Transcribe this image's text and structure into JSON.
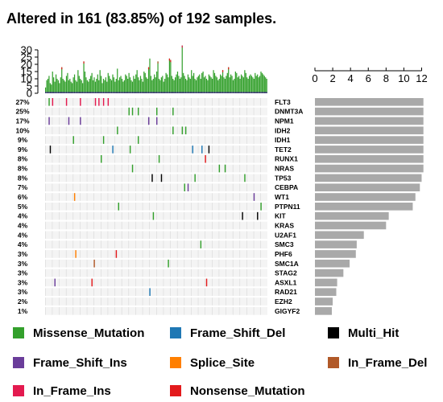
{
  "title": "Altered in 161 (83.85%) of 192 samples.",
  "colors": {
    "Missense_Mutation": "#33a02c",
    "Frame_Shift_Del": "#1f78b4",
    "Multi_Hit": "#000000",
    "Frame_Shift_Ins": "#6a3d9a",
    "Splice_Site": "#ff7f00",
    "In_Frame_Del": "#b15928",
    "In_Frame_Ins": "#e31a4f",
    "Nonsense_Mutation": "#e31a1c",
    "gene_bar": "#a9a9a9",
    "empty_cell": "#f0f0f0"
  },
  "legend": [
    {
      "label": "Missense_Mutation",
      "color": "#33a02c"
    },
    {
      "label": "Frame_Shift_Del",
      "color": "#1f78b4"
    },
    {
      "label": "Multi_Hit",
      "color": "#000000"
    },
    {
      "label": "Frame_Shift_Ins",
      "color": "#6a3d9a"
    },
    {
      "label": "Splice_Site",
      "color": "#ff7f00"
    },
    {
      "label": "In_Frame_Del",
      "color": "#b15928"
    },
    {
      "label": "In_Frame_Ins",
      "color": "#e31a4f"
    },
    {
      "label": "Nonsense_Mutation",
      "color": "#e31a1c"
    }
  ],
  "chart_data": {
    "type": "oncoplot",
    "title": "Altered in 161 (83.85%) of 192 samples.",
    "samples_total": 192,
    "samples_altered": 161,
    "tmb_axis": {
      "ticks": [
        0,
        5,
        10,
        15,
        20,
        25,
        30
      ],
      "ylim": [
        0,
        35
      ]
    },
    "gene_axis": {
      "ticks": [
        0,
        2,
        4,
        6,
        8,
        10,
        12
      ],
      "xlim": [
        0,
        12.5
      ]
    },
    "genes": [
      {
        "name": "FLT3",
        "pct": "27%",
        "count": 12.2
      },
      {
        "name": "DNMT3A",
        "pct": "25%",
        "count": 12.2
      },
      {
        "name": "NPM1",
        "pct": "17%",
        "count": 12.2
      },
      {
        "name": "IDH2",
        "pct": "10%",
        "count": 12.2
      },
      {
        "name": "IDH1",
        "pct": "9%",
        "count": 12.2
      },
      {
        "name": "TET2",
        "pct": "9%",
        "count": 12.2
      },
      {
        "name": "RUNX1",
        "pct": "8%",
        "count": 12.2
      },
      {
        "name": "NRAS",
        "pct": "8%",
        "count": 12.2
      },
      {
        "name": "TP53",
        "pct": "8%",
        "count": 12.0
      },
      {
        "name": "CEBPA",
        "pct": "7%",
        "count": 11.8
      },
      {
        "name": "WT1",
        "pct": "6%",
        "count": 11.3
      },
      {
        "name": "PTPN11",
        "pct": "5%",
        "count": 11.0
      },
      {
        "name": "KIT",
        "pct": "4%",
        "count": 8.3
      },
      {
        "name": "KRAS",
        "pct": "4%",
        "count": 8.0
      },
      {
        "name": "U2AF1",
        "pct": "4%",
        "count": 5.5
      },
      {
        "name": "SMC3",
        "pct": "4%",
        "count": 4.7
      },
      {
        "name": "PHF6",
        "pct": "3%",
        "count": 4.6
      },
      {
        "name": "SMC1A",
        "pct": "3%",
        "count": 3.9
      },
      {
        "name": "STAG2",
        "pct": "3%",
        "count": 3.2
      },
      {
        "name": "ASXL1",
        "pct": "3%",
        "count": 2.5
      },
      {
        "name": "RAD21",
        "pct": "3%",
        "count": 2.4
      },
      {
        "name": "EZH2",
        "pct": "2%",
        "count": 2.0
      },
      {
        "name": "GIGYF2",
        "pct": "1%",
        "count": 1.9
      }
    ],
    "tmb_values": [
      4,
      9,
      10,
      12,
      7,
      6,
      15,
      11,
      8,
      13,
      10,
      9,
      7,
      11,
      18,
      10,
      9,
      8,
      12,
      14,
      9,
      10,
      8,
      7,
      11,
      13,
      9,
      8,
      16,
      12,
      10,
      9,
      7,
      22,
      15,
      11,
      9,
      8,
      10,
      12,
      14,
      9,
      11,
      8,
      10,
      13,
      9,
      16,
      12,
      7,
      10,
      9,
      11,
      8,
      14,
      12,
      10,
      9,
      13,
      11,
      8,
      10,
      17,
      9,
      11,
      12,
      10,
      8,
      9,
      13,
      12,
      10,
      14,
      11,
      9,
      8,
      12,
      10,
      13,
      16,
      11,
      9,
      12,
      10,
      8,
      15,
      14,
      11,
      10,
      18,
      24,
      12,
      9,
      10,
      13,
      11,
      15,
      22,
      10,
      9,
      11,
      12,
      8,
      10,
      14,
      13,
      11,
      24,
      23,
      12,
      10,
      9,
      11,
      13,
      15,
      12,
      10,
      11,
      33,
      14,
      12,
      10,
      9,
      13,
      11,
      10,
      16,
      12,
      14,
      10,
      9,
      11,
      12,
      13,
      10,
      14,
      15,
      11,
      12,
      10,
      9,
      13,
      12,
      11,
      10,
      16,
      14,
      12,
      11,
      9,
      10,
      13,
      12,
      16,
      11,
      10,
      12,
      14,
      18,
      11,
      13,
      12,
      9,
      10,
      15,
      14,
      11,
      12,
      10,
      13,
      12,
      11,
      16,
      14,
      11,
      10,
      12,
      13,
      12,
      11,
      10,
      14,
      12,
      13,
      11,
      12,
      15,
      14,
      13,
      12,
      11,
      10
    ],
    "tmb_highlights": [
      {
        "index": 14,
        "color": "#e31a1c"
      },
      {
        "index": 33,
        "color": "#e31a1c"
      },
      {
        "index": 89,
        "color": "#e31a1c"
      },
      {
        "index": 97,
        "color": "#b15928"
      },
      {
        "index": 107,
        "color": "#e31a1c"
      },
      {
        "index": 108,
        "color": "#e31a1c"
      },
      {
        "index": 118,
        "color": "#e31a4f"
      },
      {
        "index": 153,
        "color": "#e31a1c"
      },
      {
        "index": 158,
        "color": "#e31a1c"
      }
    ],
    "alterations": [
      {
        "gene": 0,
        "sample": 6,
        "type": "In_Frame_Ins"
      },
      {
        "gene": 0,
        "sample": 18,
        "type": "In_Frame_Ins"
      },
      {
        "gene": 0,
        "sample": 30,
        "type": "In_Frame_Ins"
      },
      {
        "gene": 0,
        "sample": 43,
        "type": "In_Frame_Ins"
      },
      {
        "gene": 0,
        "sample": 46,
        "type": "In_Frame_Ins"
      },
      {
        "gene": 0,
        "sample": 50,
        "type": "In_Frame_Ins"
      },
      {
        "gene": 0,
        "sample": 54,
        "type": "In_Frame_Ins"
      },
      {
        "gene": 0,
        "sample": 3,
        "type": "Missense_Mutation"
      },
      {
        "gene": 1,
        "sample": 72,
        "type": "Missense_Mutation"
      },
      {
        "gene": 1,
        "sample": 75,
        "type": "Missense_Mutation"
      },
      {
        "gene": 1,
        "sample": 80,
        "type": "Missense_Mutation"
      },
      {
        "gene": 1,
        "sample": 96,
        "type": "Missense_Mutation"
      },
      {
        "gene": 1,
        "sample": 110,
        "type": "Missense_Mutation"
      },
      {
        "gene": 2,
        "sample": 3,
        "type": "Frame_Shift_Ins"
      },
      {
        "gene": 2,
        "sample": 20,
        "type": "Frame_Shift_Ins"
      },
      {
        "gene": 2,
        "sample": 30,
        "type": "Frame_Shift_Ins"
      },
      {
        "gene": 2,
        "sample": 89,
        "type": "Frame_Shift_Ins"
      },
      {
        "gene": 2,
        "sample": 96,
        "type": "Frame_Shift_Ins"
      },
      {
        "gene": 3,
        "sample": 62,
        "type": "Missense_Mutation"
      },
      {
        "gene": 3,
        "sample": 110,
        "type": "Missense_Mutation"
      },
      {
        "gene": 3,
        "sample": 118,
        "type": "Missense_Mutation"
      },
      {
        "gene": 3,
        "sample": 121,
        "type": "Missense_Mutation"
      },
      {
        "gene": 4,
        "sample": 24,
        "type": "Missense_Mutation"
      },
      {
        "gene": 4,
        "sample": 50,
        "type": "Missense_Mutation"
      },
      {
        "gene": 4,
        "sample": 80,
        "type": "Missense_Mutation"
      },
      {
        "gene": 5,
        "sample": 4,
        "type": "Multi_Hit"
      },
      {
        "gene": 5,
        "sample": 58,
        "type": "Frame_Shift_Del"
      },
      {
        "gene": 5,
        "sample": 73,
        "type": "Missense_Mutation"
      },
      {
        "gene": 5,
        "sample": 127,
        "type": "Frame_Shift_Del"
      },
      {
        "gene": 5,
        "sample": 135,
        "type": "Frame_Shift_Del"
      },
      {
        "gene": 5,
        "sample": 141,
        "type": "Multi_Hit"
      },
      {
        "gene": 6,
        "sample": 48,
        "type": "Missense_Mutation"
      },
      {
        "gene": 6,
        "sample": 98,
        "type": "Missense_Mutation"
      },
      {
        "gene": 6,
        "sample": 138,
        "type": "Nonsense_Mutation"
      },
      {
        "gene": 7,
        "sample": 75,
        "type": "Missense_Mutation"
      },
      {
        "gene": 7,
        "sample": 150,
        "type": "Missense_Mutation"
      },
      {
        "gene": 7,
        "sample": 155,
        "type": "Missense_Mutation"
      },
      {
        "gene": 8,
        "sample": 92,
        "type": "Multi_Hit"
      },
      {
        "gene": 8,
        "sample": 100,
        "type": "Multi_Hit"
      },
      {
        "gene": 8,
        "sample": 129,
        "type": "Missense_Mutation"
      },
      {
        "gene": 8,
        "sample": 172,
        "type": "Missense_Mutation"
      },
      {
        "gene": 9,
        "sample": 120,
        "type": "Missense_Mutation"
      },
      {
        "gene": 9,
        "sample": 123,
        "type": "Frame_Shift_Ins"
      },
      {
        "gene": 10,
        "sample": 25,
        "type": "Splice_Site"
      },
      {
        "gene": 10,
        "sample": 180,
        "type": "Frame_Shift_Ins"
      },
      {
        "gene": 11,
        "sample": 63,
        "type": "Missense_Mutation"
      },
      {
        "gene": 11,
        "sample": 186,
        "type": "Missense_Mutation"
      },
      {
        "gene": 12,
        "sample": 170,
        "type": "Multi_Hit"
      },
      {
        "gene": 12,
        "sample": 183,
        "type": "Multi_Hit"
      },
      {
        "gene": 12,
        "sample": 93,
        "type": "Missense_Mutation"
      },
      {
        "gene": 15,
        "sample": 134,
        "type": "Missense_Mutation"
      },
      {
        "gene": 16,
        "sample": 26,
        "type": "Splice_Site"
      },
      {
        "gene": 16,
        "sample": 61,
        "type": "Nonsense_Mutation"
      },
      {
        "gene": 17,
        "sample": 42,
        "type": "In_Frame_Del"
      },
      {
        "gene": 17,
        "sample": 106,
        "type": "Missense_Mutation"
      },
      {
        "gene": 19,
        "sample": 8,
        "type": "Frame_Shift_Ins"
      },
      {
        "gene": 19,
        "sample": 40,
        "type": "Nonsense_Mutation"
      },
      {
        "gene": 19,
        "sample": 139,
        "type": "Nonsense_Mutation"
      },
      {
        "gene": 20,
        "sample": 90,
        "type": "Frame_Shift_Del"
      }
    ]
  }
}
